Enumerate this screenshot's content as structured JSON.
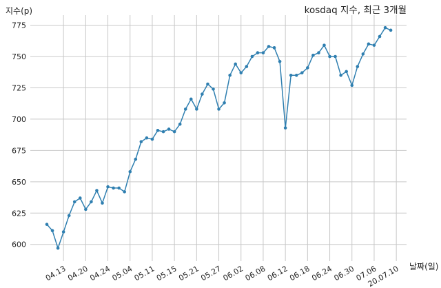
{
  "chart_data": {
    "type": "line",
    "title": "kosdaq 지수, 최근 3개월",
    "xlabel": "날짜(일)",
    "ylabel": "지수(p)",
    "ylim": [
      585,
      780
    ],
    "yticks": [
      600,
      625,
      650,
      675,
      700,
      725,
      750,
      775
    ],
    "grid": true,
    "line_color": "#2f7fb0",
    "grid_color": "#c8c8c8",
    "xtick_labels": [
      "04.13",
      "04.20",
      "04.24",
      "05.04",
      "05.11",
      "05.15",
      "05.21",
      "05.27",
      "06.02",
      "06.08",
      "06.12",
      "06.18",
      "06.24",
      "06.30",
      "07.06",
      "20.07.10"
    ],
    "xtick_index": [
      3,
      7,
      11,
      15,
      19,
      23,
      27,
      31,
      35,
      39,
      43,
      47,
      51,
      55,
      59,
      63
    ],
    "series": [
      {
        "values": [
          616,
          611,
          597,
          610,
          623,
          634,
          637,
          628,
          634,
          643,
          633,
          646,
          645,
          645,
          642,
          658,
          668,
          682,
          685,
          684,
          691,
          690,
          692,
          690,
          696,
          708,
          716,
          708,
          720,
          728,
          724,
          708,
          713,
          735,
          744,
          737,
          742,
          750,
          753,
          753,
          758,
          757,
          746,
          693,
          735,
          735,
          737,
          741,
          751,
          753,
          759,
          750,
          750,
          735,
          738,
          727,
          742,
          752,
          760,
          759,
          766,
          773,
          771
        ]
      }
    ]
  }
}
